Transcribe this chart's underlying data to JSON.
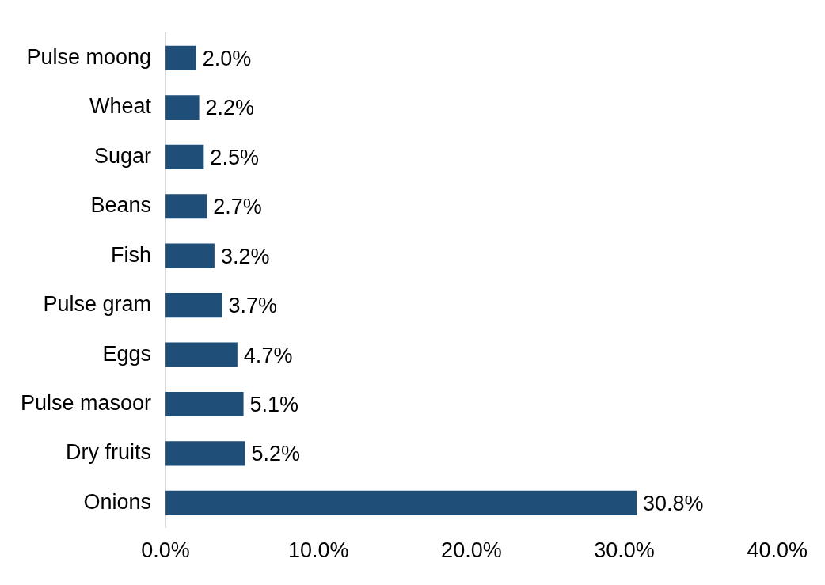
{
  "chart_data": {
    "type": "bar",
    "orientation": "horizontal",
    "categories": [
      "Pulse moong",
      "Wheat",
      "Sugar",
      "Beans",
      "Fish",
      "Pulse gram",
      "Eggs",
      "Pulse masoor",
      "Dry fruits",
      "Onions"
    ],
    "values": [
      2.0,
      2.2,
      2.5,
      2.7,
      3.2,
      3.7,
      4.7,
      5.1,
      5.2,
      30.8
    ],
    "value_labels": [
      "2.0%",
      "2.2%",
      "2.5%",
      "2.7%",
      "3.2%",
      "3.7%",
      "4.7%",
      "5.1%",
      "5.2%",
      "30.8%"
    ],
    "color": "#1f4e79",
    "xlim": [
      0,
      40
    ],
    "xticks": [
      {
        "value": 0,
        "label": "0.0%"
      },
      {
        "value": 10,
        "label": "10.0%"
      },
      {
        "value": 20,
        "label": "20.0%"
      },
      {
        "value": 30,
        "label": "30.0%"
      },
      {
        "value": 40,
        "label": "40.0%"
      }
    ],
    "grid": false,
    "legend": false
  }
}
